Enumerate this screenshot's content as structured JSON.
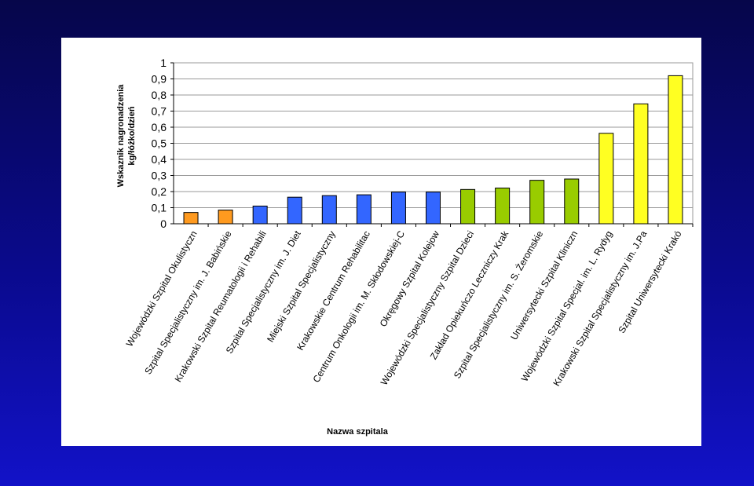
{
  "chart_data": {
    "type": "bar",
    "ylabel": [
      "Wskaznik nagronadzenia",
      "kg/łóżko/dzień"
    ],
    "xlabel": "Nazwa szpitala",
    "ylim": [
      0,
      1
    ],
    "yticks": [
      0,
      0.1,
      0.2,
      0.3,
      0.4,
      0.5,
      0.6,
      0.7,
      0.8,
      0.9,
      1
    ],
    "ytick_labels": [
      "0",
      "0,1",
      "0,2",
      "0,3",
      "0,4",
      "0,5",
      "0,6",
      "0,7",
      "0,8",
      "0,9",
      "1"
    ],
    "grid": "horizontal",
    "categories": [
      "Wojewódzki Szpital Okulistyczn",
      "Szpital Specjalistyczny im. J. Babińskie",
      "Krakowski Szpital Reumatologii i Rehabili",
      "Szpital Specjalistyczny im. J. Diet",
      "Miejski Szpital Specjalistyczny",
      "Krakowskie Centrum Rehabilitac",
      "Centrum Onkologii im. M. Skłodowskiej-C",
      "Okręgowy Szpital Kolejow",
      "Wojewódzki Specjalistyczny Szpital Dzieci",
      "Zakład Opiekuńczo Leczniczy Krak",
      "Szpital Specjalistyczny im. S. Żeromskie",
      "Uniwersytecki Szpital Kliniczn",
      "Wojewódzki Szpital Specjal. im. L. Rydyg",
      "Krakowski Szpital Specjalistyczny im. J.Pa",
      "Szpital Uniwersytecki Krakó"
    ],
    "values": [
      0.07,
      0.085,
      0.11,
      0.165,
      0.175,
      0.18,
      0.197,
      0.197,
      0.213,
      0.222,
      0.27,
      0.278,
      0.562,
      0.745,
      0.92
    ],
    "bar_colors": [
      "#ff9a1f",
      "#ff9a1f",
      "#3366ff",
      "#3366ff",
      "#3366ff",
      "#3366ff",
      "#3366ff",
      "#3366ff",
      "#99cc00",
      "#99cc00",
      "#99cc00",
      "#99cc00",
      "#ffff22",
      "#ffff22",
      "#ffff22"
    ]
  }
}
